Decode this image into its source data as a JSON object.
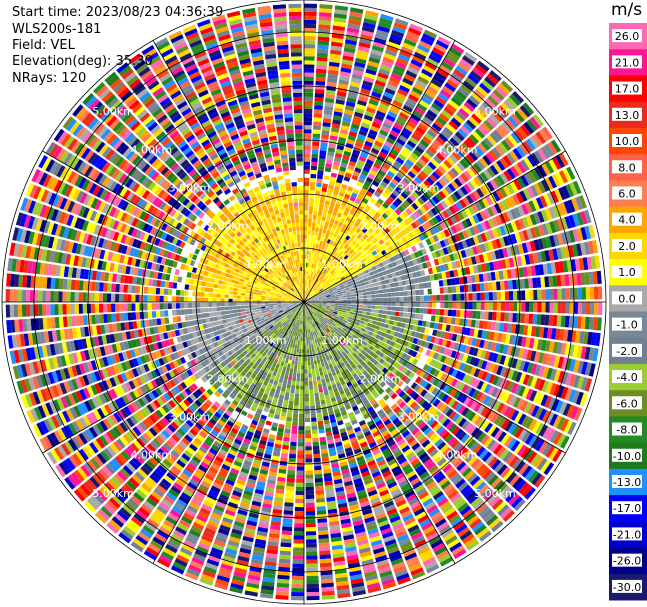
{
  "header": {
    "start_time": "Start time: 2023/08/23 04:36:39",
    "site": "WLS200s-181",
    "field": "Field: VEL",
    "elevation": "Elevation(deg): 35.30",
    "nrays": "NRays: 120"
  },
  "chart_data": {
    "type": "heatmap",
    "projection": "polar-ppi",
    "field": "VEL",
    "units": "m/s",
    "n_rays": 120,
    "max_range_km": 5.5,
    "range_ring_labels": [
      {
        "km": 1,
        "label": "1.00km"
      },
      {
        "km": 2,
        "label": "2.00km"
      },
      {
        "km": 3,
        "label": "3.00km"
      },
      {
        "km": 4,
        "label": "4.00km"
      },
      {
        "km": 5,
        "label": "5.00km"
      }
    ],
    "colorbar": {
      "label": "m/s",
      "ticks": [
        "26.0",
        "21.0",
        "17.0",
        "13.0",
        "10.0",
        "8.0",
        "6.0",
        "4.0",
        "2.0",
        "1.0",
        "0.0",
        "-1.0",
        "-2.0",
        "-4.0",
        "-6.0",
        "-8.0",
        "-10.0",
        "-13.0",
        "-17.0",
        "-21.0",
        "-26.0",
        "-30.0"
      ],
      "colors": [
        "#ff69b4",
        "#ff1493",
        "#ff0000",
        "#ee2a1a",
        "#ff4500",
        "#ff6347",
        "#ff7f50",
        "#ffa500",
        "#ffd700",
        "#ffff00",
        "#a9a9a9",
        "#778899",
        "#708090",
        "#9acd32",
        "#6b8e23",
        "#228b22",
        "#1e7b1e",
        "#1e90ff",
        "#0000ff",
        "#0000cd",
        "#00008b",
        "#191970"
      ]
    },
    "near_field_regions": [
      {
        "from_deg": 300,
        "to_deg": 45,
        "max_km": 2.3,
        "values": [
          2.0,
          4.0,
          1.0
        ]
      },
      {
        "from_deg": 45,
        "to_deg": 62,
        "max_km": 2.5,
        "values": [
          2.0,
          1.0
        ]
      },
      {
        "from_deg": 62,
        "to_deg": 100,
        "max_km": 2.3,
        "values": [
          0.0,
          -1.0,
          -2.0
        ]
      },
      {
        "from_deg": 100,
        "to_deg": 180,
        "max_km": 2.3,
        "values": [
          -2.0,
          -4.0,
          -6.0
        ]
      },
      {
        "from_deg": 180,
        "to_deg": 235,
        "max_km": 2.3,
        "values": [
          -4.0,
          -6.0,
          -2.0
        ]
      },
      {
        "from_deg": 235,
        "to_deg": 270,
        "max_km": 2.4,
        "values": [
          0.0,
          -1.0
        ]
      },
      {
        "from_deg": 270,
        "to_deg": 300,
        "max_km": 2.2,
        "values": [
          2.0,
          1.0,
          4.0
        ]
      }
    ]
  }
}
